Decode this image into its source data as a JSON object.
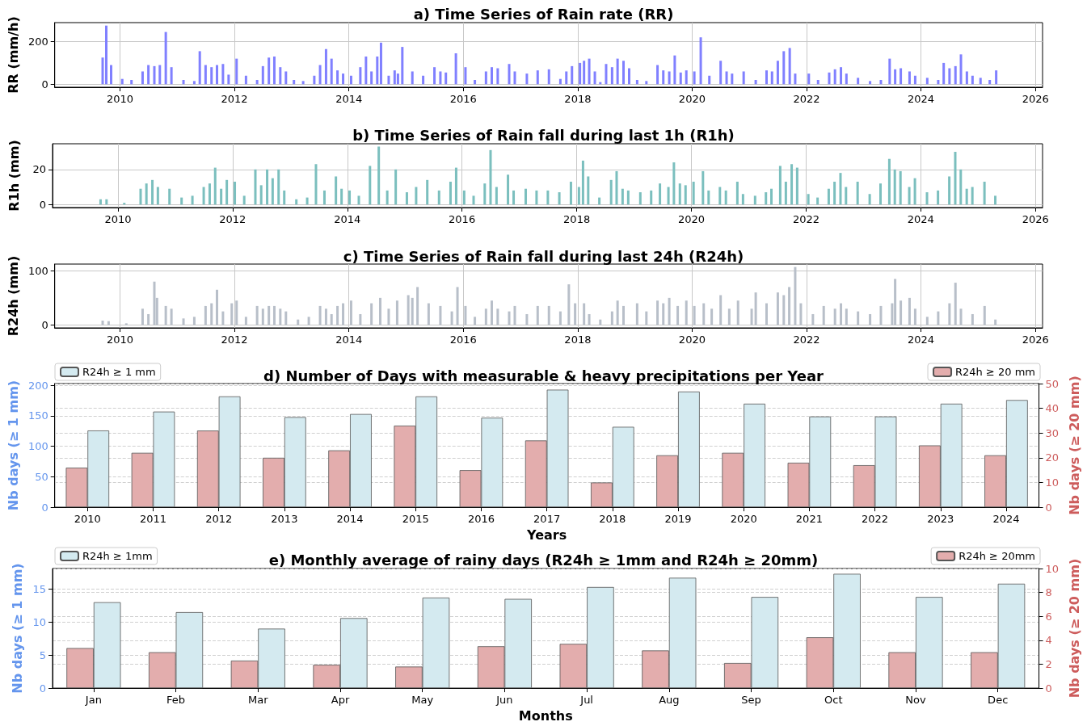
{
  "chart_data": [
    {
      "type": "bar",
      "title": "a) Time Series of Rain rate (RR)",
      "ylabel": "RR (mm/h)",
      "color": "#8080ff",
      "grid": true,
      "xlim": [
        "2008-11-10",
        "2026-02-15"
      ],
      "xticks": [
        "2010",
        "2012",
        "2014",
        "2016",
        "2018",
        "2020",
        "2022",
        "2024",
        "2026"
      ],
      "ylim": [
        -14,
        289
      ],
      "yticks": [
        0,
        200
      ],
      "x": [
        "2009-09-12",
        "2009-10-05",
        "2009-11-05",
        "2010-01-15",
        "2010-03-15",
        "2010-05-25",
        "2010-07-01",
        "2010-08-08",
        "2010-09-12",
        "2010-10-20",
        "2010-11-25",
        "2011-02-10",
        "2011-04-20",
        "2011-05-25",
        "2011-07-01",
        "2011-08-08",
        "2011-09-12",
        "2011-10-20",
        "2011-11-25",
        "2012-01-15",
        "2012-03-15",
        "2012-05-25",
        "2012-07-01",
        "2012-08-08",
        "2012-09-12",
        "2012-10-20",
        "2012-11-25",
        "2013-01-15",
        "2013-03-15",
        "2013-05-25",
        "2013-07-01",
        "2013-08-08",
        "2013-09-12",
        "2013-10-20",
        "2013-11-25",
        "2014-01-15",
        "2014-03-15",
        "2014-04-20",
        "2014-05-25",
        "2014-07-01",
        "2014-07-25",
        "2014-09-12",
        "2014-10-20",
        "2014-11-10",
        "2014-12-08",
        "2015-02-10",
        "2015-04-20",
        "2015-07-01",
        "2015-08-08",
        "2015-09-12",
        "2015-11-15",
        "2016-01-15",
        "2016-03-15",
        "2016-05-25",
        "2016-07-01",
        "2016-08-08",
        "2016-10-20",
        "2016-11-25",
        "2017-02-10",
        "2017-04-20",
        "2017-07-01",
        "2017-09-12",
        "2017-10-20",
        "2017-11-25",
        "2018-01-15",
        "2018-02-10",
        "2018-03-15",
        "2018-04-20",
        "2018-05-25",
        "2018-07-01",
        "2018-08-08",
        "2018-09-12",
        "2018-10-20",
        "2018-11-25",
        "2019-01-15",
        "2019-03-15",
        "2019-05-25",
        "2019-07-01",
        "2019-08-08",
        "2019-09-12",
        "2019-10-20",
        "2019-11-25",
        "2020-01-15",
        "2020-02-25",
        "2020-04-20",
        "2020-07-01",
        "2020-08-08",
        "2020-09-12",
        "2020-11-25",
        "2021-02-10",
        "2021-04-20",
        "2021-05-25",
        "2021-07-01",
        "2021-08-08",
        "2021-09-15",
        "2021-10-20",
        "2022-01-15",
        "2022-03-15",
        "2022-05-25",
        "2022-07-01",
        "2022-08-08",
        "2022-09-12",
        "2022-11-25",
        "2023-02-10",
        "2023-04-20",
        "2023-06-15",
        "2023-07-20",
        "2023-08-25",
        "2023-10-20",
        "2023-11-25",
        "2024-02-10",
        "2024-04-20",
        "2024-05-25",
        "2024-07-01",
        "2024-08-08",
        "2024-09-12",
        "2024-10-20",
        "2024-11-25",
        "2025-01-15",
        "2025-03-15",
        "2025-04-25"
      ],
      "values": [
        125,
        275,
        90,
        25,
        20,
        60,
        90,
        85,
        90,
        245,
        80,
        20,
        15,
        155,
        90,
        80,
        90,
        95,
        45,
        120,
        40,
        20,
        85,
        125,
        130,
        80,
        60,
        20,
        15,
        40,
        90,
        165,
        120,
        65,
        50,
        40,
        80,
        130,
        60,
        130,
        195,
        40,
        65,
        50,
        175,
        60,
        40,
        80,
        60,
        55,
        145,
        80,
        20,
        60,
        80,
        75,
        95,
        60,
        50,
        65,
        70,
        25,
        60,
        85,
        100,
        110,
        120,
        60,
        10,
        95,
        80,
        120,
        110,
        75,
        20,
        15,
        90,
        65,
        60,
        135,
        55,
        65,
        60,
        220,
        40,
        110,
        60,
        50,
        60,
        20,
        65,
        60,
        110,
        155,
        170,
        50,
        50,
        20,
        55,
        70,
        80,
        50,
        30,
        15,
        20,
        120,
        70,
        75,
        60,
        40,
        30,
        20,
        100,
        75,
        85,
        140,
        60,
        40,
        30,
        20,
        65
      ]
    },
    {
      "type": "bar",
      "title": "b) Time Series of Rain fall during last 1h (R1h)",
      "ylabel": "R1h (mm)",
      "color": "#7bbfbe",
      "grid": true,
      "xlim": [
        "2008-11-10",
        "2026-02-15"
      ],
      "xticks": [
        "2010",
        "2012",
        "2014",
        "2016",
        "2018",
        "2020",
        "2022",
        "2024",
        "2026"
      ],
      "ylim": [
        -1.7,
        34.6
      ],
      "yticks": [
        0,
        20
      ],
      "x": [
        "2009-09-12",
        "2009-10-20",
        "2010-02-10",
        "2010-05-25",
        "2010-07-01",
        "2010-08-08",
        "2010-09-12",
        "2010-11-25",
        "2011-02-10",
        "2011-04-20",
        "2011-07-01",
        "2011-08-08",
        "2011-09-12",
        "2011-10-20",
        "2011-11-25",
        "2012-01-15",
        "2012-03-15",
        "2012-05-25",
        "2012-07-01",
        "2012-08-08",
        "2012-09-12",
        "2012-10-20",
        "2012-11-25",
        "2013-02-10",
        "2013-04-20",
        "2013-06-15",
        "2013-08-08",
        "2013-10-20",
        "2013-11-25",
        "2014-01-15",
        "2014-03-15",
        "2014-05-25",
        "2014-07-20",
        "2014-09-12",
        "2014-11-05",
        "2015-01-15",
        "2015-03-15",
        "2015-05-25",
        "2015-08-08",
        "2015-10-20",
        "2015-11-25",
        "2016-01-15",
        "2016-03-15",
        "2016-05-25",
        "2016-07-01",
        "2016-08-08",
        "2016-10-20",
        "2016-11-25",
        "2017-02-10",
        "2017-04-20",
        "2017-07-01",
        "2017-09-12",
        "2017-11-25",
        "2018-01-15",
        "2018-02-10",
        "2018-03-15",
        "2018-05-25",
        "2018-08-08",
        "2018-09-12",
        "2018-10-20",
        "2018-11-25",
        "2019-02-10",
        "2019-04-20",
        "2019-06-15",
        "2019-08-08",
        "2019-09-12",
        "2019-10-20",
        "2019-11-25",
        "2020-01-15",
        "2020-03-15",
        "2020-04-20",
        "2020-07-01",
        "2020-08-08",
        "2020-10-20",
        "2020-11-25",
        "2021-02-10",
        "2021-04-20",
        "2021-05-25",
        "2021-07-20",
        "2021-08-25",
        "2021-10-01",
        "2021-11-05",
        "2022-01-15",
        "2022-03-15",
        "2022-05-25",
        "2022-07-01",
        "2022-08-08",
        "2022-09-12",
        "2022-11-25",
        "2023-02-10",
        "2023-04-20",
        "2023-06-15",
        "2023-07-20",
        "2023-08-25",
        "2023-10-20",
        "2023-11-25",
        "2024-02-10",
        "2024-04-20",
        "2024-07-01",
        "2024-08-08",
        "2024-09-12",
        "2024-10-20",
        "2024-11-25",
        "2025-02-10",
        "2025-04-20"
      ],
      "values": [
        3,
        3,
        1,
        9,
        12,
        14,
        10,
        9,
        4,
        5,
        10,
        12,
        21,
        9,
        14,
        13,
        5,
        20,
        11,
        20,
        15,
        20,
        8,
        3,
        4,
        23,
        8,
        16,
        9,
        8,
        5,
        22,
        33,
        8,
        20,
        7,
        10,
        14,
        8,
        13,
        21,
        8,
        5,
        12,
        31,
        10,
        17,
        8,
        9,
        8,
        8,
        7,
        13,
        10,
        25,
        16,
        4,
        14,
        19,
        9,
        8,
        7,
        8,
        12,
        10,
        24,
        12,
        11,
        13,
        19,
        8,
        10,
        8,
        13,
        6,
        5,
        7,
        9,
        22,
        13,
        23,
        21,
        6,
        4,
        9,
        13,
        18,
        10,
        13,
        6,
        12,
        26,
        20,
        19,
        10,
        15,
        7,
        8,
        16,
        30,
        20,
        9,
        10,
        13,
        5
      ]
    },
    {
      "type": "bar",
      "title": "c) Time Series of Rain fall during last 24h (R24h)",
      "ylabel": "R24h (mm)",
      "color": "#b8bfc9",
      "grid": true,
      "xlim": [
        "2008-11-10",
        "2026-02-15"
      ],
      "xticks": [
        "2010",
        "2012",
        "2014",
        "2016",
        "2018",
        "2020",
        "2022",
        "2024",
        "2026"
      ],
      "ylim": [
        -5.4,
        112.4
      ],
      "yticks": [
        0,
        100
      ],
      "x": [
        "2009-09-12",
        "2009-10-20",
        "2010-02-10",
        "2010-05-25",
        "2010-07-01",
        "2010-08-08",
        "2010-08-25",
        "2010-10-20",
        "2010-11-25",
        "2011-02-10",
        "2011-04-20",
        "2011-07-01",
        "2011-08-08",
        "2011-09-12",
        "2011-10-20",
        "2011-12-15",
        "2012-01-15",
        "2012-03-15",
        "2012-05-25",
        "2012-07-01",
        "2012-08-08",
        "2012-09-12",
        "2012-10-20",
        "2012-11-25",
        "2013-02-10",
        "2013-04-20",
        "2013-07-01",
        "2013-08-08",
        "2013-09-12",
        "2013-10-20",
        "2013-11-25",
        "2014-01-15",
        "2014-03-15",
        "2014-05-25",
        "2014-07-20",
        "2014-09-12",
        "2014-11-05",
        "2015-01-15",
        "2015-02-10",
        "2015-03-15",
        "2015-05-25",
        "2015-08-08",
        "2015-10-20",
        "2015-11-25",
        "2016-01-15",
        "2016-03-15",
        "2016-05-25",
        "2016-07-01",
        "2016-08-08",
        "2016-10-20",
        "2016-11-25",
        "2017-02-10",
        "2017-04-20",
        "2017-07-01",
        "2017-09-12",
        "2017-11-05",
        "2017-12-15",
        "2018-02-10",
        "2018-03-15",
        "2018-05-25",
        "2018-08-08",
        "2018-09-12",
        "2018-10-20",
        "2019-01-15",
        "2019-03-15",
        "2019-05-25",
        "2019-07-01",
        "2019-08-08",
        "2019-10-01",
        "2019-11-25",
        "2020-01-15",
        "2020-03-15",
        "2020-05-05",
        "2020-07-01",
        "2020-08-25",
        "2020-10-20",
        "2021-01-15",
        "2021-02-10",
        "2021-04-20",
        "2021-07-01",
        "2021-08-08",
        "2021-09-12",
        "2021-10-20",
        "2021-11-25",
        "2022-02-10",
        "2022-04-20",
        "2022-07-01",
        "2022-08-08",
        "2022-09-12",
        "2022-11-25",
        "2023-02-10",
        "2023-04-20",
        "2023-07-01",
        "2023-07-20",
        "2023-08-25",
        "2023-10-20",
        "2023-11-25",
        "2024-02-10",
        "2024-04-20",
        "2024-07-01",
        "2024-08-08",
        "2024-09-12",
        "2024-11-25",
        "2025-02-10",
        "2025-04-20"
      ],
      "values": [
        8,
        7,
        3,
        30,
        20,
        80,
        50,
        35,
        30,
        12,
        15,
        35,
        40,
        65,
        25,
        40,
        45,
        15,
        35,
        30,
        35,
        35,
        30,
        25,
        10,
        15,
        35,
        30,
        20,
        35,
        40,
        45,
        20,
        40,
        50,
        30,
        45,
        55,
        50,
        70,
        40,
        35,
        25,
        70,
        35,
        15,
        30,
        45,
        30,
        25,
        35,
        20,
        35,
        35,
        25,
        75,
        40,
        40,
        20,
        10,
        25,
        45,
        35,
        40,
        25,
        45,
        40,
        50,
        35,
        45,
        35,
        40,
        30,
        55,
        30,
        45,
        30,
        60,
        40,
        60,
        55,
        70,
        107,
        40,
        20,
        35,
        30,
        40,
        30,
        25,
        20,
        35,
        40,
        85,
        45,
        50,
        30,
        15,
        25,
        40,
        78,
        30,
        20,
        35,
        10
      ]
    },
    {
      "type": "bar",
      "title": "d) Number of Days with measurable & heavy precipitations per Year",
      "xlabel": "Years",
      "ylabel": "Nb days (≥ 1 mm)",
      "y2label": "Nb days (≥ 20 mm)",
      "grid": "y",
      "legend": "top",
      "categories": [
        "2010",
        "2011",
        "2012",
        "2013",
        "2014",
        "2015",
        "2016",
        "2017",
        "2018",
        "2019",
        "2020",
        "2021",
        "2022",
        "2023",
        "2024"
      ],
      "ylim": [
        0,
        203
      ],
      "yticks": [
        0,
        50,
        100,
        150,
        200
      ],
      "y2lim": [
        0,
        50
      ],
      "y2ticks": [
        0,
        10,
        20,
        30,
        40,
        50
      ],
      "series": [
        {
          "name": "R24h ≥ 20 mm",
          "color": "#e3adad",
          "axis": "y2",
          "values": [
            16,
            22,
            31,
            20,
            23,
            33,
            15,
            27,
            10,
            21,
            22,
            18,
            17,
            25,
            21
          ]
        },
        {
          "name": "R24h ≥ 1 mm",
          "color": "#d4eaf0",
          "values": [
            126,
            157,
            182,
            148,
            153,
            182,
            147,
            193,
            132,
            190,
            170,
            149,
            149,
            170,
            176
          ]
        }
      ]
    },
    {
      "type": "bar",
      "title": "e) Monthly average of rainy days (R24h ≥ 1mm and R24h ≥ 20mm)",
      "xlabel": "Months",
      "ylabel": "Nb days (≥ 1 mm)",
      "y2label": "Nb days (≥ 20 mm)",
      "grid": "y",
      "legend": "top",
      "categories": [
        "Jan",
        "Feb",
        "Mar",
        "Apr",
        "May",
        "Jun",
        "Jul",
        "Aug",
        "Sep",
        "Oct",
        "Nov",
        "Dec"
      ],
      "ylim": [
        0,
        18.1
      ],
      "yticks": [
        0,
        5,
        10,
        15
      ],
      "y2lim": [
        0,
        10
      ],
      "y2ticks": [
        0,
        2,
        4,
        6,
        8,
        10
      ],
      "series": [
        {
          "name": "R24h ≥ 20mm",
          "color": "#e3adad",
          "axis": "y2",
          "values": [
            3.35,
            3.0,
            2.3,
            1.95,
            1.8,
            3.5,
            3.7,
            3.15,
            2.1,
            4.25,
            3.0,
            3.0
          ]
        },
        {
          "name": "R24h ≥ 1mm",
          "color": "#d4eaf0",
          "values": [
            13.0,
            11.5,
            9.0,
            10.6,
            13.7,
            13.5,
            15.3,
            16.7,
            13.8,
            17.3,
            13.8,
            15.8
          ]
        }
      ]
    }
  ]
}
